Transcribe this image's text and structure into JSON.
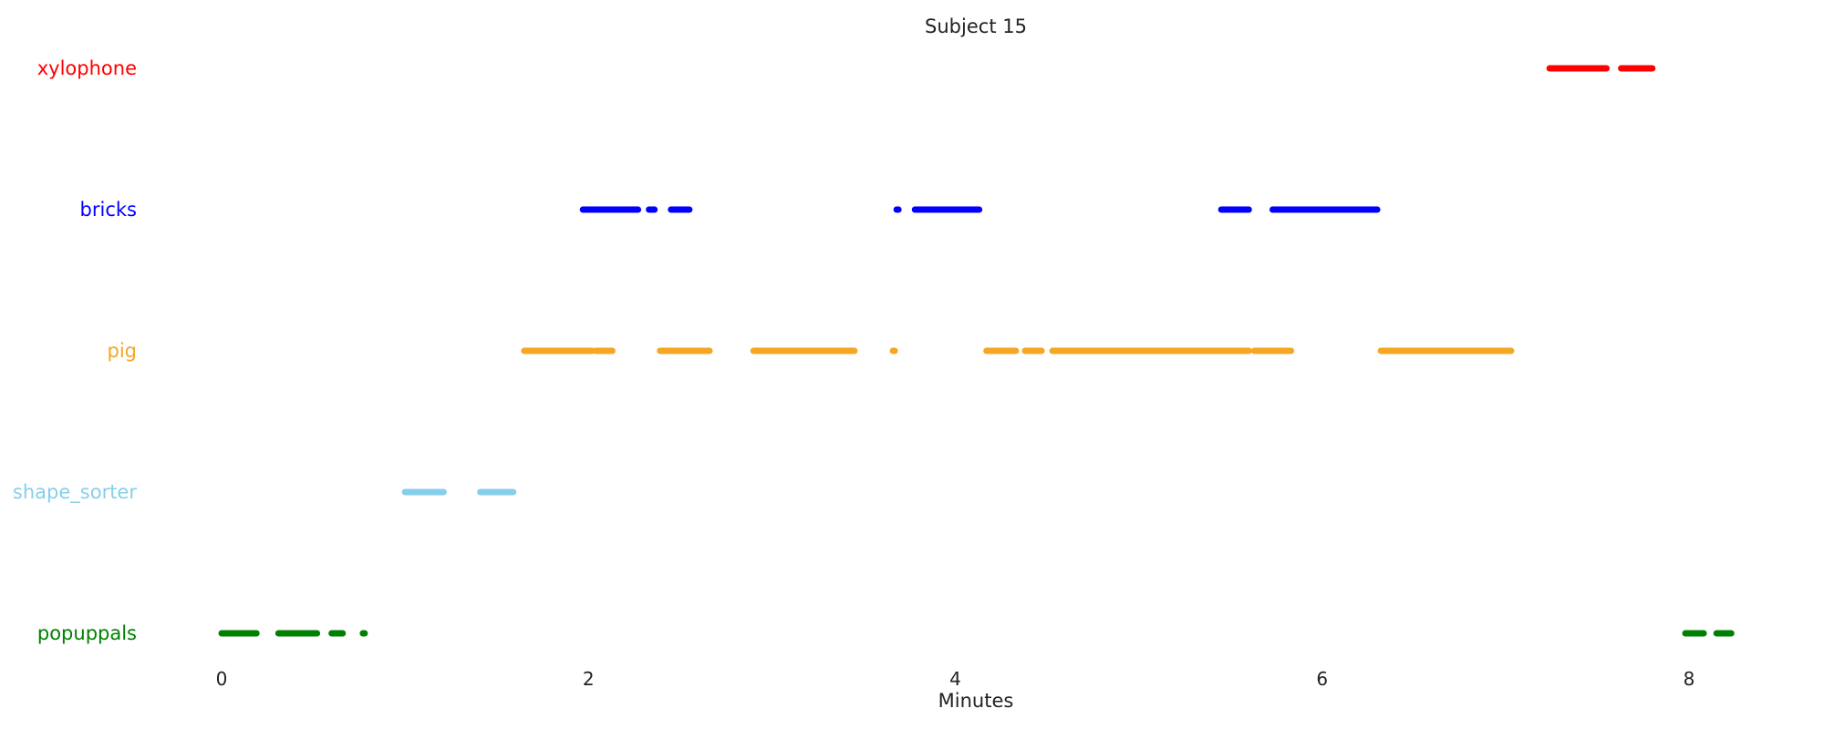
{
  "chart_data": {
    "type": "timeline",
    "title": "Subject 15",
    "xlabel": "Minutes",
    "ylabel": "",
    "xlim": [
      -0.45,
      8.78
    ],
    "xticks": [
      0,
      2,
      4,
      6,
      8
    ],
    "xtick_labels": [
      "0",
      "2",
      "4",
      "6",
      "8"
    ],
    "grid": false,
    "categories": [
      "xylophone",
      "bricks",
      "pig",
      "shape_sorter",
      "popuppals"
    ],
    "series": [
      {
        "name": "xylophone",
        "color": "#ff0000",
        "intervals": [
          [
            7.24,
            7.55
          ],
          [
            7.63,
            7.8
          ]
        ]
      },
      {
        "name": "bricks",
        "color": "#0000ff",
        "intervals": [
          [
            1.97,
            2.27
          ],
          [
            2.33,
            2.36
          ],
          [
            2.45,
            2.55
          ],
          [
            3.68,
            3.69
          ],
          [
            3.78,
            4.13
          ],
          [
            5.45,
            5.6
          ],
          [
            5.73,
            6.3
          ]
        ]
      },
      {
        "name": "pig",
        "color": "#f5a623",
        "intervals": [
          [
            1.65,
            2.02
          ],
          [
            2.04,
            2.13
          ],
          [
            2.39,
            2.66
          ],
          [
            2.9,
            3.45
          ],
          [
            3.66,
            3.67
          ],
          [
            4.17,
            4.33
          ],
          [
            4.38,
            4.47
          ],
          [
            4.53,
            5.6
          ],
          [
            5.63,
            5.83
          ],
          [
            6.32,
            7.03
          ]
        ]
      },
      {
        "name": "shape_sorter",
        "color": "#87ceeb",
        "intervals": [
          [
            1.0,
            1.21
          ],
          [
            1.41,
            1.59
          ]
        ]
      },
      {
        "name": "popuppals",
        "color": "#008000",
        "intervals": [
          [
            0.0,
            0.19
          ],
          [
            0.31,
            0.52
          ],
          [
            0.6,
            0.66
          ],
          [
            0.77,
            0.78
          ],
          [
            7.98,
            8.08
          ],
          [
            8.15,
            8.23
          ]
        ]
      }
    ]
  }
}
